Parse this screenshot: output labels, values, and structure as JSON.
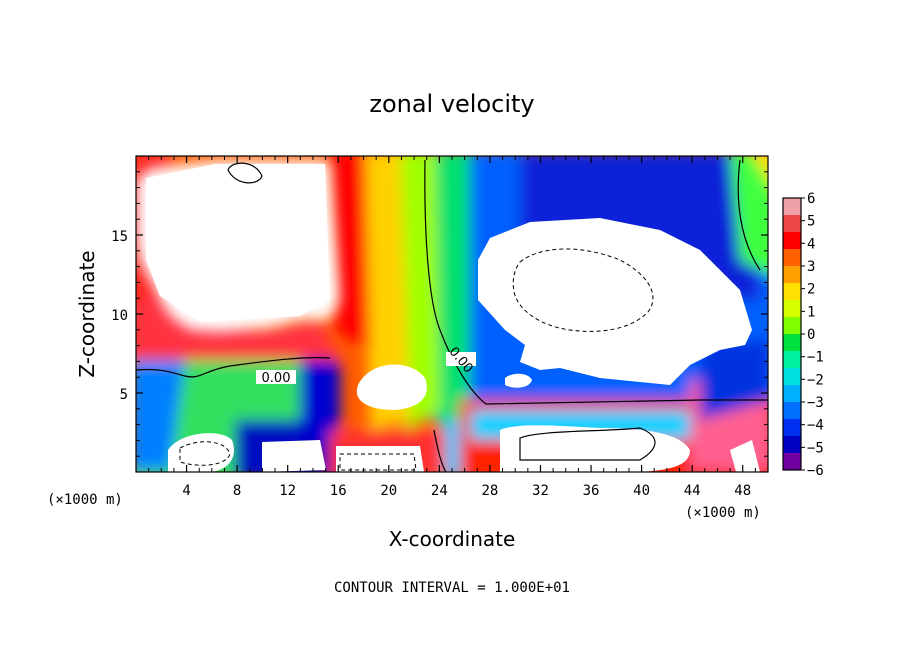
{
  "chart_data": {
    "type": "heatmap",
    "title": "zonal velocity",
    "xlabel": "X-coordinate",
    "ylabel": "Z-coordinate",
    "x_unit_note": "(×1000 m)",
    "y_unit_note": "(×1000 m)",
    "xlim": [
      0,
      50
    ],
    "ylim": [
      0,
      20
    ],
    "x_ticks": [
      4,
      8,
      12,
      16,
      20,
      24,
      28,
      32,
      36,
      40,
      44,
      48
    ],
    "y_ticks": [
      5,
      10,
      15
    ],
    "colorbar": {
      "labels": [
        "6",
        "5",
        "4",
        "3",
        "2",
        "1",
        "0",
        "−1",
        "−2",
        "−3",
        "−4",
        "−5",
        "−6"
      ],
      "colors": [
        "#f0a0a8",
        "#f04848",
        "#ff0000",
        "#ff6000",
        "#ffa000",
        "#ffe000",
        "#d8ff00",
        "#80ff00",
        "#00e040",
        "#00f0a0",
        "#00e0e0",
        "#00b0ff",
        "#0070ff",
        "#0030f0",
        "#0000c0",
        "#7000a0"
      ]
    },
    "contour_labels": [
      {
        "text": "0.00",
        "x": 9.0,
        "z": 6.0
      },
      {
        "text": "0.00",
        "x": 25.5,
        "z": 6.9
      }
    ],
    "regions": [
      {
        "desc": "upper-left saturated positive region (white, > 6)",
        "sign": "positive"
      },
      {
        "desc": "central band of strong positive to near-zero flow",
        "x": [
          14,
          30
        ],
        "sign": "positive"
      },
      {
        "desc": "upper-right saturated negative region (white)",
        "x": [
          27,
          49
        ],
        "z": [
          6,
          16
        ],
        "sign": "negative"
      },
      {
        "desc": "lower-left saturated negative regions near the ground",
        "x": [
          0,
          24
        ],
        "z": [
          0,
          3
        ],
        "sign": "negative"
      }
    ],
    "note": "CONTOUR INTERVAL = 1.000E+01"
  }
}
